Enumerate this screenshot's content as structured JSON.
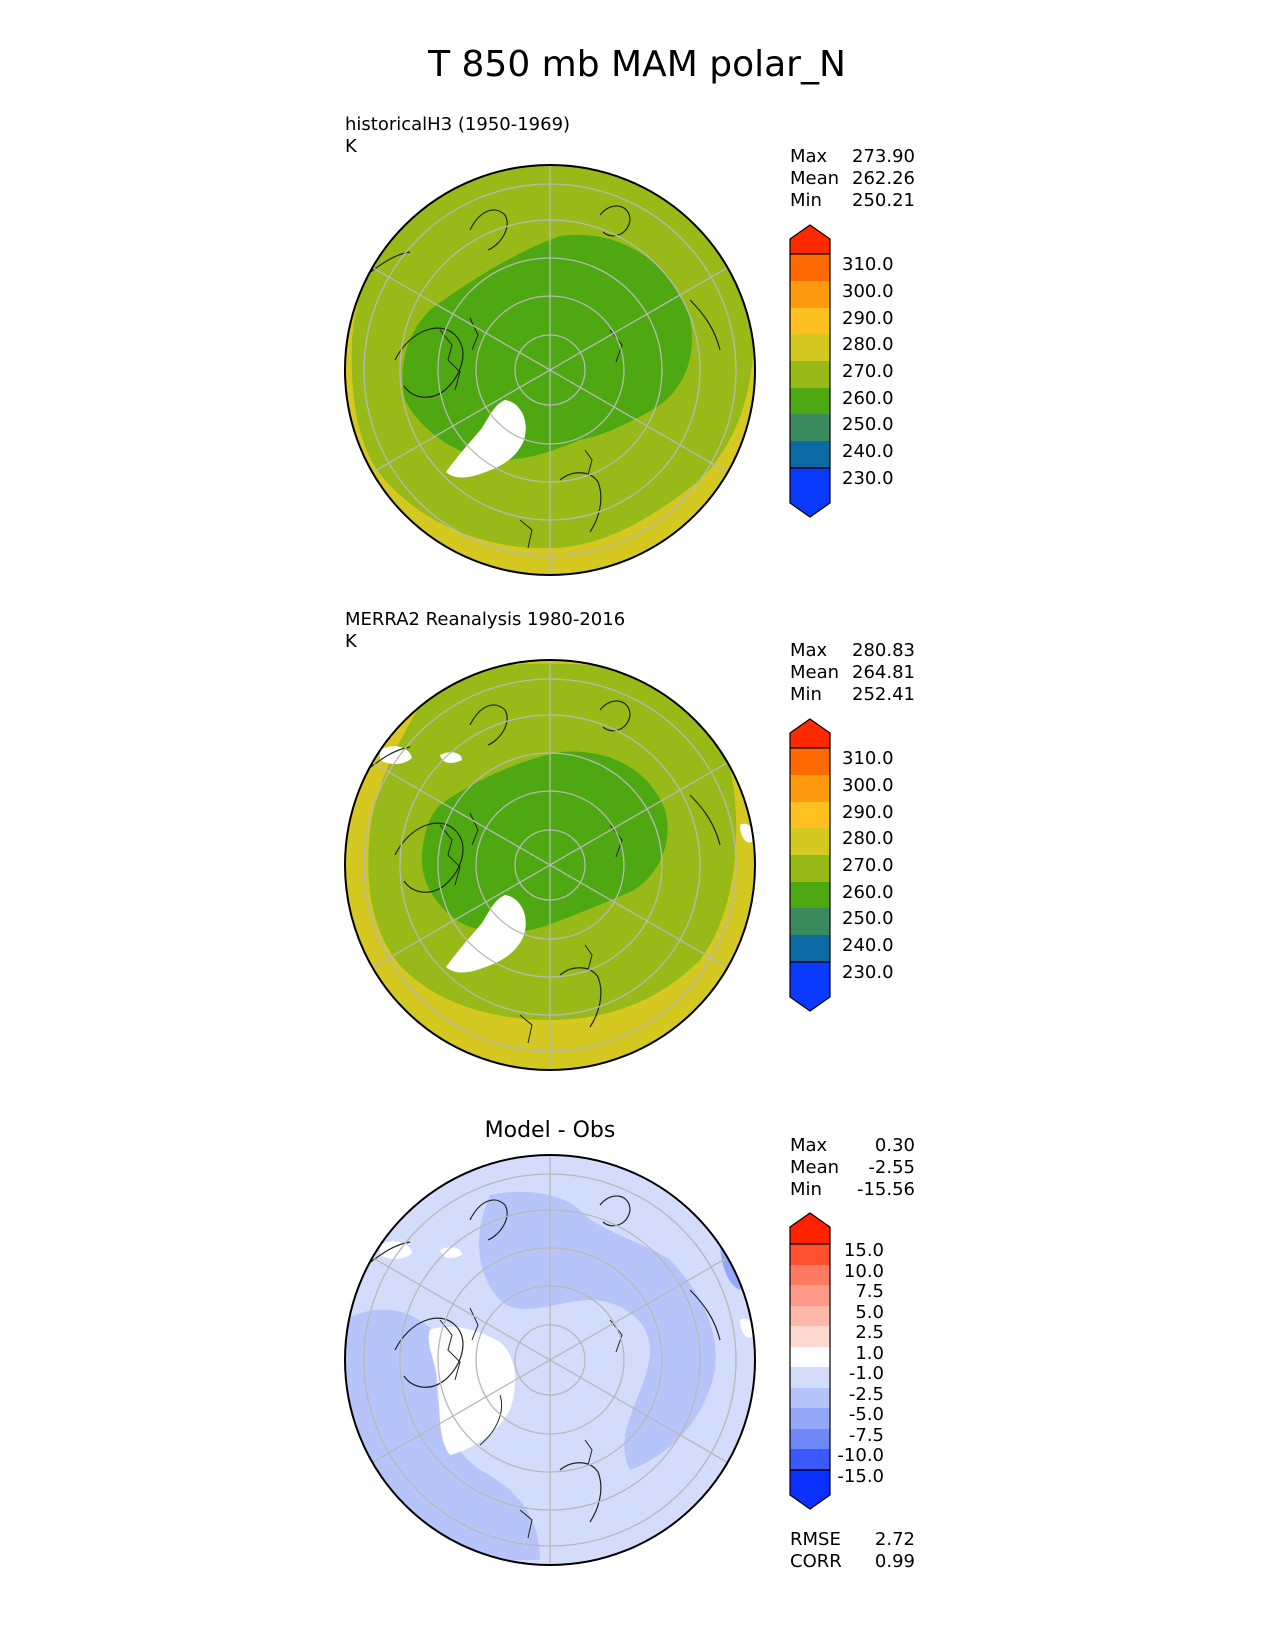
{
  "title": "T 850 mb MAM polar_N",
  "chart_data": [
    {
      "type": "heatmap",
      "projection": "north polar stereographic",
      "title": "historicalH3 (1950-1969)",
      "units": "K",
      "stats": [
        {
          "label": "Max",
          "value": "273.90"
        },
        {
          "label": "Mean",
          "value": "262.26"
        },
        {
          "label": "Min",
          "value": "250.21"
        }
      ],
      "colorbar": {
        "levels": [
          "310.0",
          "300.0",
          "290.0",
          "280.0",
          "270.0",
          "260.0",
          "250.0",
          "240.0",
          "230.0"
        ],
        "colors": [
          "#ff2a00",
          "#ff6a00",
          "#ff9a10",
          "#ffc020",
          "#d4c821",
          "#97ba18",
          "#4ea811",
          "#3b8a5e",
          "#0b6aa4",
          "#0a3aff"
        ]
      },
      "field": {
        "pole_band": "250-260",
        "mid_band": "260-270",
        "outer_band": "270-280"
      }
    },
    {
      "type": "heatmap",
      "projection": "north polar stereographic",
      "title": "MERRA2 Reanalysis 1980-2016",
      "units": "K",
      "stats": [
        {
          "label": "Max",
          "value": "280.83"
        },
        {
          "label": "Mean",
          "value": "264.81"
        },
        {
          "label": "Min",
          "value": "252.41"
        }
      ],
      "colorbar": {
        "levels": [
          "310.0",
          "300.0",
          "290.0",
          "280.0",
          "270.0",
          "260.0",
          "250.0",
          "240.0",
          "230.0"
        ],
        "colors": [
          "#ff2a00",
          "#ff6a00",
          "#ff9a10",
          "#ffc020",
          "#d4c821",
          "#97ba18",
          "#4ea811",
          "#3b8a5e",
          "#0b6aa4",
          "#0a3aff"
        ]
      },
      "field": {
        "pole_band": "250-260",
        "mid_band": "260-270",
        "outer_band": "270-280"
      }
    },
    {
      "type": "heatmap",
      "projection": "north polar stereographic",
      "title": "Model - Obs",
      "units": "",
      "stats": [
        {
          "label": "Max",
          "value": "0.30"
        },
        {
          "label": "Mean",
          "value": "-2.55"
        },
        {
          "label": "Min",
          "value": "-15.56"
        }
      ],
      "extra_stats": [
        {
          "label": "RMSE",
          "value": "2.72"
        },
        {
          "label": "CORR",
          "value": "0.99"
        }
      ],
      "colorbar": {
        "levels": [
          "15.0",
          "10.0",
          "7.5",
          "5.0",
          "2.5",
          "1.0",
          "-1.0",
          "-2.5",
          "-5.0",
          "-7.5",
          "-10.0",
          "-15.0"
        ],
        "colors": [
          "#ff2200",
          "#ff5030",
          "#ff7a60",
          "#ff9a88",
          "#ffb8aa",
          "#ffd8d2",
          "#fdfdfd",
          "#d4dcfc",
          "#b6c4fa",
          "#94a8fa",
          "#6e88f8",
          "#3a5aff",
          "#0a30ff"
        ]
      },
      "field": {
        "dominant_band": "-2.5 to -1.0",
        "secondary_band": "-5.0 to -2.5"
      }
    }
  ]
}
